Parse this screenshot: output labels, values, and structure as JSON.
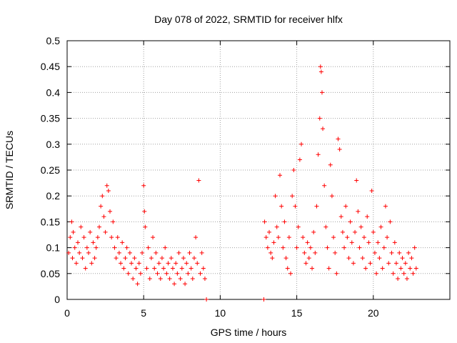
{
  "colors": {
    "series": "#ff0000",
    "grid": "#a0a0a0",
    "axis": "#000000",
    "background": "#ffffff"
  },
  "chart_data": {
    "type": "scatter",
    "title": "Day 078 of 2022, SRMTID for receiver hlfx",
    "xlabel": "GPS time / hours",
    "ylabel": "SRMTID / TECUs",
    "xlim": [
      0,
      25
    ],
    "ylim": [
      0,
      0.5
    ],
    "xticks": [
      0,
      5,
      10,
      15,
      20
    ],
    "xtick_labels": [
      "0",
      "5",
      "10",
      "15",
      "20"
    ],
    "yticks": [
      0,
      0.05,
      0.1,
      0.15,
      0.2,
      0.25,
      0.3,
      0.35,
      0.4,
      0.45,
      0.5
    ],
    "ytick_labels": [
      "0",
      "0.05",
      "0.1",
      "0.15",
      "0.2",
      "0.25",
      "0.3",
      "0.35",
      "0.4",
      "0.45",
      "0.5"
    ],
    "grid": true,
    "marker": "plus",
    "points": [
      [
        0.1,
        0.09
      ],
      [
        0.2,
        0.12
      ],
      [
        0.3,
        0.15
      ],
      [
        0.35,
        0.08
      ],
      [
        0.4,
        0.13
      ],
      [
        0.5,
        0.1
      ],
      [
        0.6,
        0.07
      ],
      [
        0.7,
        0.11
      ],
      [
        0.8,
        0.09
      ],
      [
        0.9,
        0.14
      ],
      [
        1.0,
        0.08
      ],
      [
        1.1,
        0.12
      ],
      [
        1.2,
        0.06
      ],
      [
        1.3,
        0.1
      ],
      [
        1.4,
        0.09
      ],
      [
        1.5,
        0.13
      ],
      [
        1.6,
        0.07
      ],
      [
        1.7,
        0.11
      ],
      [
        1.8,
        0.08
      ],
      [
        1.9,
        0.1
      ],
      [
        2.0,
        0.12
      ],
      [
        2.1,
        0.14
      ],
      [
        2.2,
        0.18
      ],
      [
        2.3,
        0.2
      ],
      [
        2.4,
        0.16
      ],
      [
        2.5,
        0.13
      ],
      [
        2.6,
        0.22
      ],
      [
        2.7,
        0.21
      ],
      [
        2.8,
        0.17
      ],
      [
        2.9,
        0.12
      ],
      [
        3.0,
        0.15
      ],
      [
        3.1,
        0.1
      ],
      [
        3.2,
        0.08
      ],
      [
        3.3,
        0.12
      ],
      [
        3.4,
        0.09
      ],
      [
        3.5,
        0.07
      ],
      [
        3.6,
        0.11
      ],
      [
        3.7,
        0.06
      ],
      [
        3.8,
        0.08
      ],
      [
        3.9,
        0.1
      ],
      [
        4.0,
        0.05
      ],
      [
        4.1,
        0.09
      ],
      [
        4.2,
        0.07
      ],
      [
        4.3,
        0.04
      ],
      [
        4.4,
        0.08
      ],
      [
        4.5,
        0.06
      ],
      [
        4.6,
        0.03
      ],
      [
        4.7,
        0.07
      ],
      [
        4.8,
        0.05
      ],
      [
        4.9,
        0.09
      ],
      [
        5.0,
        0.22
      ],
      [
        5.05,
        0.17
      ],
      [
        5.1,
        0.14
      ],
      [
        5.2,
        0.06
      ],
      [
        5.3,
        0.1
      ],
      [
        5.4,
        0.04
      ],
      [
        5.5,
        0.08
      ],
      [
        5.6,
        0.12
      ],
      [
        5.7,
        0.06
      ],
      [
        5.8,
        0.09
      ],
      [
        5.9,
        0.05
      ],
      [
        6.0,
        0.07
      ],
      [
        6.1,
        0.04
      ],
      [
        6.2,
        0.08
      ],
      [
        6.3,
        0.06
      ],
      [
        6.4,
        0.1
      ],
      [
        6.5,
        0.05
      ],
      [
        6.6,
        0.07
      ],
      [
        6.7,
        0.04
      ],
      [
        6.8,
        0.08
      ],
      [
        6.9,
        0.06
      ],
      [
        7.0,
        0.03
      ],
      [
        7.1,
        0.07
      ],
      [
        7.2,
        0.05
      ],
      [
        7.3,
        0.09
      ],
      [
        7.4,
        0.04
      ],
      [
        7.5,
        0.06
      ],
      [
        7.6,
        0.08
      ],
      [
        7.7,
        0.03
      ],
      [
        7.8,
        0.07
      ],
      [
        7.9,
        0.05
      ],
      [
        8.0,
        0.09
      ],
      [
        8.1,
        0.06
      ],
      [
        8.2,
        0.04
      ],
      [
        8.3,
        0.08
      ],
      [
        8.4,
        0.12
      ],
      [
        8.5,
        0.07
      ],
      [
        8.6,
        0.23
      ],
      [
        8.7,
        0.05
      ],
      [
        8.8,
        0.09
      ],
      [
        8.9,
        0.06
      ],
      [
        9.0,
        0.04
      ],
      [
        9.1,
        0.0
      ],
      [
        12.85,
        0.0
      ],
      [
        12.9,
        0.15
      ],
      [
        13.0,
        0.12
      ],
      [
        13.1,
        0.1
      ],
      [
        13.2,
        0.13
      ],
      [
        13.3,
        0.09
      ],
      [
        13.4,
        0.08
      ],
      [
        13.5,
        0.11
      ],
      [
        13.6,
        0.2
      ],
      [
        13.7,
        0.14
      ],
      [
        13.8,
        0.12
      ],
      [
        13.9,
        0.24
      ],
      [
        14.0,
        0.18
      ],
      [
        14.1,
        0.1
      ],
      [
        14.2,
        0.15
      ],
      [
        14.3,
        0.08
      ],
      [
        14.4,
        0.06
      ],
      [
        14.5,
        0.12
      ],
      [
        14.6,
        0.05
      ],
      [
        14.7,
        0.2
      ],
      [
        14.8,
        0.25
      ],
      [
        14.9,
        0.18
      ],
      [
        15.0,
        0.1
      ],
      [
        15.1,
        0.14
      ],
      [
        15.2,
        0.27
      ],
      [
        15.3,
        0.3
      ],
      [
        15.4,
        0.12
      ],
      [
        15.5,
        0.09
      ],
      [
        15.6,
        0.07
      ],
      [
        15.7,
        0.11
      ],
      [
        15.8,
        0.08
      ],
      [
        15.9,
        0.1
      ],
      [
        16.0,
        0.06
      ],
      [
        16.1,
        0.13
      ],
      [
        16.2,
        0.09
      ],
      [
        16.3,
        0.18
      ],
      [
        16.4,
        0.28
      ],
      [
        16.5,
        0.35
      ],
      [
        16.55,
        0.45
      ],
      [
        16.6,
        0.44
      ],
      [
        16.65,
        0.4
      ],
      [
        16.7,
        0.33
      ],
      [
        16.8,
        0.22
      ],
      [
        16.9,
        0.14
      ],
      [
        17.0,
        0.1
      ],
      [
        17.1,
        0.06
      ],
      [
        17.2,
        0.26
      ],
      [
        17.3,
        0.2
      ],
      [
        17.4,
        0.12
      ],
      [
        17.5,
        0.09
      ],
      [
        17.6,
        0.05
      ],
      [
        17.7,
        0.31
      ],
      [
        17.8,
        0.29
      ],
      [
        17.9,
        0.16
      ],
      [
        18.0,
        0.13
      ],
      [
        18.1,
        0.1
      ],
      [
        18.2,
        0.18
      ],
      [
        18.3,
        0.12
      ],
      [
        18.4,
        0.08
      ],
      [
        18.5,
        0.15
      ],
      [
        18.6,
        0.11
      ],
      [
        18.7,
        0.07
      ],
      [
        18.8,
        0.13
      ],
      [
        18.9,
        0.23
      ],
      [
        19.0,
        0.17
      ],
      [
        19.1,
        0.1
      ],
      [
        19.2,
        0.14
      ],
      [
        19.3,
        0.08
      ],
      [
        19.4,
        0.12
      ],
      [
        19.5,
        0.06
      ],
      [
        19.6,
        0.16
      ],
      [
        19.7,
        0.11
      ],
      [
        19.8,
        0.07
      ],
      [
        19.9,
        0.21
      ],
      [
        20.0,
        0.13
      ],
      [
        20.1,
        0.09
      ],
      [
        20.2,
        0.05
      ],
      [
        20.3,
        0.11
      ],
      [
        20.4,
        0.08
      ],
      [
        20.5,
        0.14
      ],
      [
        20.6,
        0.06
      ],
      [
        20.7,
        0.1
      ],
      [
        20.8,
        0.18
      ],
      [
        20.9,
        0.12
      ],
      [
        21.0,
        0.07
      ],
      [
        21.1,
        0.15
      ],
      [
        21.2,
        0.09
      ],
      [
        21.3,
        0.05
      ],
      [
        21.4,
        0.11
      ],
      [
        21.5,
        0.07
      ],
      [
        21.6,
        0.04
      ],
      [
        21.7,
        0.09
      ],
      [
        21.8,
        0.06
      ],
      [
        21.9,
        0.08
      ],
      [
        22.0,
        0.05
      ],
      [
        22.1,
        0.07
      ],
      [
        22.2,
        0.04
      ],
      [
        22.3,
        0.09
      ],
      [
        22.4,
        0.06
      ],
      [
        22.5,
        0.08
      ],
      [
        22.6,
        0.05
      ],
      [
        22.7,
        0.1
      ],
      [
        22.8,
        0.06
      ]
    ]
  }
}
